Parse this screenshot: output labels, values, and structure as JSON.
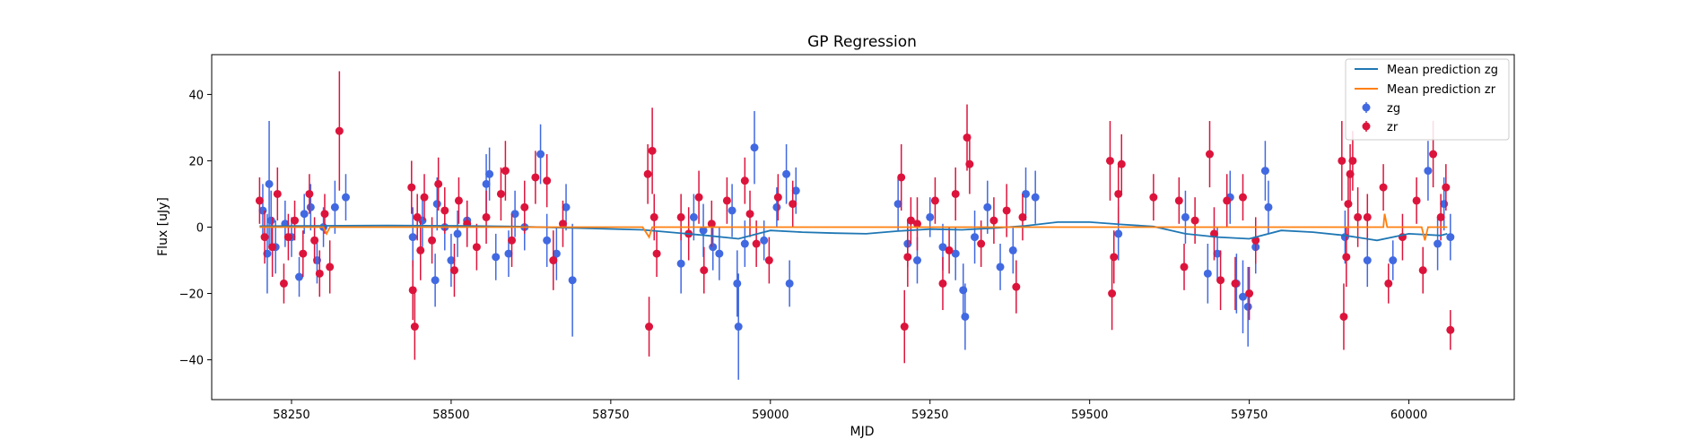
{
  "chart_data": {
    "type": "scatter",
    "title": "GP Regression",
    "xlabel": "MJD",
    "ylabel": "Flux [uJy]",
    "xlim": [
      58125,
      60165
    ],
    "ylim": [
      -52,
      52
    ],
    "xticks": [
      58250,
      58500,
      58750,
      59000,
      59250,
      59500,
      59750,
      60000
    ],
    "yticks": [
      -40,
      -20,
      0,
      20,
      40
    ],
    "grid": false,
    "legend_position": "top-right",
    "colors": {
      "zg": "#4169e1",
      "zr": "#dc143c",
      "mean_zg": "#1f77b4",
      "mean_zr": "#ff7f0e"
    },
    "series": [
      {
        "name": "Mean prediction zg",
        "kind": "line",
        "x": [
          58200,
          58300,
          58400,
          58500,
          58600,
          58700,
          58800,
          58900,
          58950,
          59000,
          59050,
          59100,
          59150,
          59200,
          59250,
          59300,
          59350,
          59400,
          59450,
          59500,
          59550,
          59600,
          59650,
          59700,
          59750,
          59800,
          59850,
          59900,
          59950,
          60000,
          60050,
          60060
        ],
        "y": [
          0.3,
          0.4,
          0.5,
          0.4,
          0.2,
          -0.3,
          -0.8,
          -2.5,
          -3.5,
          -1.0,
          -1.5,
          -1.8,
          -2.0,
          -1.2,
          -0.6,
          -0.8,
          -0.3,
          0.4,
          1.5,
          1.5,
          0.8,
          0.2,
          -2.0,
          -3.0,
          -3.5,
          -1.0,
          -1.5,
          -2.5,
          -4.0,
          -2.0,
          -2.5,
          -2.0
        ]
      },
      {
        "name": "Mean prediction zr",
        "kind": "line",
        "x": [
          58200,
          58300,
          58305,
          58310,
          58400,
          58600,
          58800,
          58810,
          58815,
          58820,
          59000,
          59200,
          59400,
          59600,
          59900,
          59960,
          59962,
          59966,
          59970,
          60020,
          60025,
          60030,
          60060
        ],
        "y": [
          0,
          0,
          -2,
          0,
          0,
          0,
          0,
          -3,
          0,
          0,
          0,
          0,
          0,
          0,
          0,
          0,
          4,
          0,
          0,
          0,
          -4,
          0,
          0
        ]
      },
      {
        "name": "zg",
        "kind": "errorbar",
        "points": [
          [
            58205,
            5,
            8
          ],
          [
            58212,
            -8,
            12
          ],
          [
            58215,
            13,
            19
          ],
          [
            58218,
            2,
            9
          ],
          [
            58225,
            -6,
            8
          ],
          [
            58240,
            1,
            7
          ],
          [
            58250,
            -3,
            6
          ],
          [
            58262,
            -15,
            6
          ],
          [
            58270,
            4,
            6
          ],
          [
            58280,
            6,
            7
          ],
          [
            58290,
            -10,
            7
          ],
          [
            58300,
            0,
            6
          ],
          [
            58318,
            6,
            8
          ],
          [
            58335,
            9,
            7
          ],
          [
            58440,
            -3,
            9
          ],
          [
            58455,
            2,
            8
          ],
          [
            58475,
            -16,
            8
          ],
          [
            58478,
            7,
            8
          ],
          [
            58490,
            0,
            7
          ],
          [
            58500,
            -10,
            8
          ],
          [
            58510,
            -2,
            7
          ],
          [
            58525,
            2,
            6
          ],
          [
            58555,
            13,
            9
          ],
          [
            58560,
            16,
            8
          ],
          [
            58570,
            -9,
            7
          ],
          [
            58590,
            -8,
            7
          ],
          [
            58600,
            4,
            7
          ],
          [
            58615,
            0,
            7
          ],
          [
            58640,
            22,
            9
          ],
          [
            58650,
            -4,
            8
          ],
          [
            58665,
            -8,
            8
          ],
          [
            58680,
            6,
            7
          ],
          [
            58690,
            -16,
            17
          ],
          [
            58860,
            -11,
            9
          ],
          [
            58880,
            3,
            7
          ],
          [
            58895,
            -1,
            8
          ],
          [
            58910,
            -6,
            7
          ],
          [
            58920,
            -8,
            8
          ],
          [
            58940,
            5,
            8
          ],
          [
            58948,
            -17,
            10
          ],
          [
            58950,
            -30,
            16
          ],
          [
            58960,
            -5,
            7
          ],
          [
            58975,
            24,
            11
          ],
          [
            58990,
            -4,
            6
          ],
          [
            59010,
            6,
            6
          ],
          [
            59025,
            16,
            9
          ],
          [
            59030,
            -17,
            7
          ],
          [
            59040,
            11,
            7
          ],
          [
            59200,
            7,
            8
          ],
          [
            59215,
            -5,
            7
          ],
          [
            59230,
            -10,
            7
          ],
          [
            59250,
            3,
            6
          ],
          [
            59270,
            -6,
            7
          ],
          [
            59290,
            -8,
            8
          ],
          [
            59302,
            -19,
            8
          ],
          [
            59305,
            -27,
            10
          ],
          [
            59320,
            -3,
            8
          ],
          [
            59340,
            6,
            8
          ],
          [
            59360,
            -12,
            7
          ],
          [
            59380,
            -7,
            7
          ],
          [
            59400,
            10,
            8
          ],
          [
            59415,
            9,
            8
          ],
          [
            59545,
            -2,
            8
          ],
          [
            59650,
            3,
            8
          ],
          [
            59685,
            -14,
            9
          ],
          [
            59700,
            -8,
            8
          ],
          [
            59720,
            9,
            8
          ],
          [
            59730,
            -17,
            9
          ],
          [
            59740,
            -21,
            11
          ],
          [
            59748,
            -24,
            12
          ],
          [
            59760,
            -6,
            8
          ],
          [
            59775,
            17,
            9
          ],
          [
            59780,
            6,
            8
          ],
          [
            59900,
            -3,
            8
          ],
          [
            59935,
            -10,
            8
          ],
          [
            59975,
            -10,
            6
          ],
          [
            60030,
            17,
            9
          ],
          [
            60045,
            -5,
            8
          ],
          [
            60055,
            7,
            8
          ],
          [
            60065,
            -3,
            7
          ]
        ]
      },
      {
        "name": "zr",
        "kind": "errorbar",
        "points": [
          [
            58200,
            8,
            7
          ],
          [
            58208,
            -3,
            8
          ],
          [
            58220,
            -6,
            9
          ],
          [
            58228,
            10,
            8
          ],
          [
            58238,
            -17,
            6
          ],
          [
            58245,
            -3,
            7
          ],
          [
            58255,
            2,
            6
          ],
          [
            58268,
            -8,
            7
          ],
          [
            58278,
            10,
            6
          ],
          [
            58286,
            -4,
            7
          ],
          [
            58294,
            -14,
            7
          ],
          [
            58302,
            4,
            6
          ],
          [
            58310,
            -12,
            8
          ],
          [
            58325,
            29,
            18
          ],
          [
            58438,
            12,
            8
          ],
          [
            58440,
            -19,
            9
          ],
          [
            58443,
            -30,
            10
          ],
          [
            58447,
            3,
            7
          ],
          [
            58452,
            -7,
            9
          ],
          [
            58458,
            9,
            7
          ],
          [
            58470,
            -4,
            7
          ],
          [
            58480,
            13,
            8
          ],
          [
            58490,
            5,
            7
          ],
          [
            58505,
            -13,
            8
          ],
          [
            58512,
            8,
            7
          ],
          [
            58525,
            1,
            7
          ],
          [
            58540,
            -6,
            7
          ],
          [
            58555,
            3,
            8
          ],
          [
            58578,
            10,
            8
          ],
          [
            58585,
            17,
            9
          ],
          [
            58595,
            -4,
            8
          ],
          [
            58615,
            6,
            8
          ],
          [
            58632,
            15,
            8
          ],
          [
            58650,
            14,
            8
          ],
          [
            58660,
            -10,
            9
          ],
          [
            58675,
            1,
            7
          ],
          [
            58808,
            16,
            9
          ],
          [
            58810,
            -30,
            9
          ],
          [
            58815,
            23,
            13
          ],
          [
            58818,
            3,
            7
          ],
          [
            58822,
            -8,
            7
          ],
          [
            58860,
            3,
            7
          ],
          [
            58872,
            -2,
            8
          ],
          [
            58888,
            9,
            8
          ],
          [
            58896,
            -13,
            7
          ],
          [
            58908,
            1,
            7
          ],
          [
            58932,
            8,
            7
          ],
          [
            58960,
            14,
            7
          ],
          [
            58968,
            4,
            7
          ],
          [
            58978,
            -5,
            7
          ],
          [
            58998,
            -10,
            7
          ],
          [
            59012,
            9,
            7
          ],
          [
            59035,
            7,
            7
          ],
          [
            59205,
            15,
            10
          ],
          [
            59210,
            -30,
            11
          ],
          [
            59215,
            -9,
            9
          ],
          [
            59220,
            2,
            7
          ],
          [
            59230,
            1,
            8
          ],
          [
            59258,
            8,
            7
          ],
          [
            59270,
            -17,
            8
          ],
          [
            59280,
            -7,
            7
          ],
          [
            59290,
            10,
            8
          ],
          [
            59308,
            27,
            10
          ],
          [
            59312,
            19,
            9
          ],
          [
            59330,
            -5,
            7
          ],
          [
            59350,
            2,
            7
          ],
          [
            59370,
            5,
            8
          ],
          [
            59385,
            -18,
            8
          ],
          [
            59395,
            3,
            7
          ],
          [
            59532,
            20,
            12
          ],
          [
            59535,
            -20,
            11
          ],
          [
            59538,
            -9,
            8
          ],
          [
            59545,
            10,
            9
          ],
          [
            59550,
            19,
            9
          ],
          [
            59600,
            9,
            7
          ],
          [
            59640,
            8,
            7
          ],
          [
            59648,
            -12,
            7
          ],
          [
            59665,
            2,
            7
          ],
          [
            59688,
            22,
            10
          ],
          [
            59695,
            -2,
            8
          ],
          [
            59705,
            -16,
            9
          ],
          [
            59715,
            8,
            8
          ],
          [
            59728,
            -17,
            8
          ],
          [
            59740,
            9,
            7
          ],
          [
            59750,
            -20,
            8
          ],
          [
            59760,
            -4,
            7
          ],
          [
            59895,
            20,
            12
          ],
          [
            59898,
            -27,
            10
          ],
          [
            59902,
            -9,
            9
          ],
          [
            59905,
            7,
            10
          ],
          [
            59908,
            16,
            9
          ],
          [
            59912,
            20,
            9
          ],
          [
            59920,
            3,
            9
          ],
          [
            59935,
            3,
            7
          ],
          [
            59960,
            12,
            7
          ],
          [
            59968,
            -17,
            6
          ],
          [
            59990,
            -3,
            7
          ],
          [
            60012,
            8,
            7
          ],
          [
            60022,
            -13,
            7
          ],
          [
            60038,
            22,
            10
          ],
          [
            60050,
            3,
            7
          ],
          [
            60058,
            12,
            7
          ],
          [
            60065,
            -31,
            6
          ]
        ]
      }
    ]
  }
}
